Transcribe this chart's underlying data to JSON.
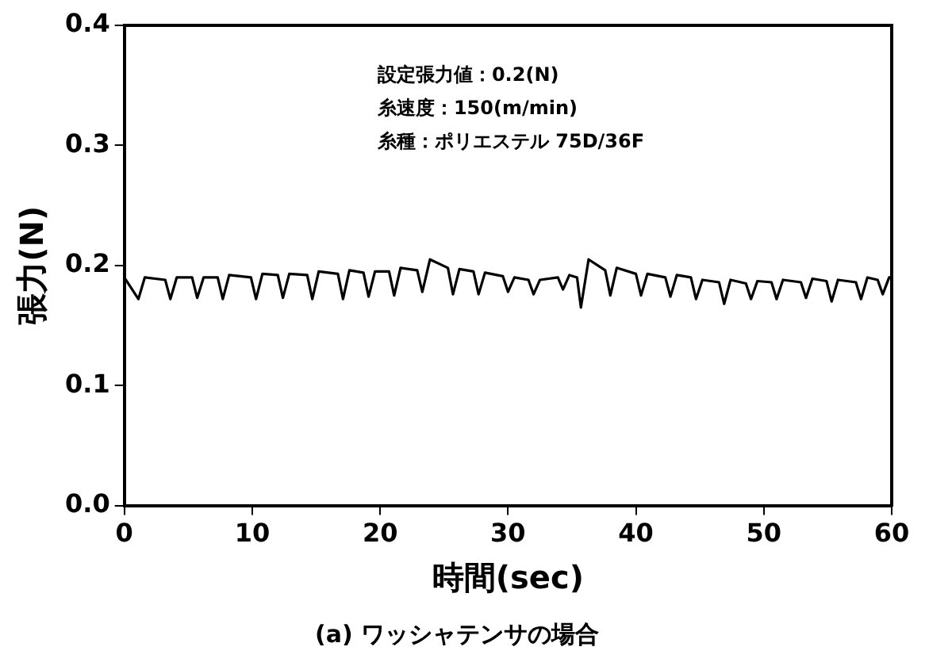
{
  "chart_data": {
    "type": "line",
    "title": "(a) ワッシャテンサの場合",
    "xlabel": "時間(sec)",
    "ylabel": "張力(N)",
    "annotations": [
      "設定張力値：0.2(N)",
      "糸速度：150(m/min)",
      "糸種：ポリエステル 75D/36F"
    ],
    "xlim": [
      0,
      60
    ],
    "xticks": [
      0,
      10,
      20,
      30,
      40,
      50,
      60
    ],
    "ylim": [
      0,
      0.4
    ],
    "yticks": [
      {
        "value": 0,
        "label": "0.0"
      },
      0.1,
      0.2,
      0.3,
      0.4
    ],
    "grid": false,
    "legend": false,
    "marker": "none",
    "line_style": "solid",
    "x": [
      0,
      1.1,
      1.6,
      3.2,
      3.6,
      4.1,
      5.3,
      5.7,
      6.2,
      7.3,
      7.7,
      8.2,
      9.9,
      10.3,
      10.8,
      12.0,
      12.4,
      12.9,
      14.3,
      14.7,
      15.2,
      16.7,
      17.1,
      17.6,
      18.7,
      19.1,
      19.6,
      20.7,
      21.1,
      21.6,
      22.9,
      23.3,
      23.9,
      25.3,
      25.7,
      26.2,
      27.3,
      27.7,
      28.2,
      29.6,
      30.0,
      30.5,
      31.6,
      32.0,
      32.5,
      33.9,
      34.3,
      34.8,
      35.4,
      35.7,
      36.3,
      37.6,
      38.0,
      38.5,
      40.0,
      40.4,
      40.9,
      42.3,
      42.7,
      43.2,
      44.3,
      44.7,
      45.2,
      46.5,
      46.9,
      47.4,
      48.6,
      49.0,
      49.5,
      50.6,
      51.0,
      51.5,
      52.9,
      53.3,
      53.8,
      54.9,
      55.3,
      55.8,
      57.2,
      57.6,
      58.1,
      58.9,
      59.3,
      59.8,
      60
    ],
    "series": [
      {
        "color": "#000000",
        "values": [
          0.19,
          0.172,
          0.19,
          0.188,
          0.172,
          0.19,
          0.19,
          0.173,
          0.19,
          0.19,
          0.172,
          0.192,
          0.19,
          0.172,
          0.193,
          0.192,
          0.173,
          0.193,
          0.192,
          0.172,
          0.195,
          0.193,
          0.172,
          0.196,
          0.194,
          0.174,
          0.195,
          0.195,
          0.175,
          0.198,
          0.196,
          0.178,
          0.205,
          0.198,
          0.176,
          0.197,
          0.195,
          0.176,
          0.194,
          0.191,
          0.178,
          0.19,
          0.188,
          0.176,
          0.188,
          0.19,
          0.18,
          0.192,
          0.19,
          0.165,
          0.205,
          0.196,
          0.175,
          0.198,
          0.193,
          0.175,
          0.193,
          0.19,
          0.174,
          0.192,
          0.19,
          0.172,
          0.188,
          0.186,
          0.168,
          0.188,
          0.185,
          0.172,
          0.187,
          0.186,
          0.172,
          0.188,
          0.186,
          0.173,
          0.189,
          0.187,
          0.17,
          0.188,
          0.186,
          0.172,
          0.19,
          0.188,
          0.176,
          0.19,
          0.19
        ]
      }
    ]
  }
}
